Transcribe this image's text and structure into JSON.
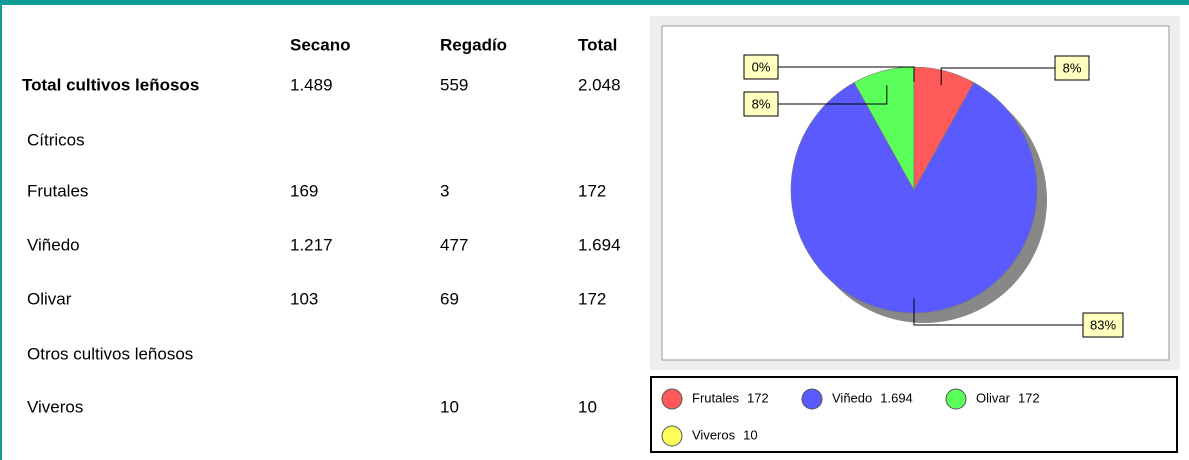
{
  "table": {
    "header": [
      "Secano",
      "Regadío",
      "Total"
    ],
    "rows": [
      {
        "label": "Total cultivos leñosos",
        "secano": "1.489",
        "regadio": "559",
        "total": "2.048"
      },
      {
        "label": "Cítricos"
      },
      {
        "label": "Frutales",
        "secano": "169",
        "regadio": "3",
        "total": "172"
      },
      {
        "label": "Viñedo",
        "secano": "1.217",
        "regadio": "477",
        "total": "1.694"
      },
      {
        "label": "Olivar",
        "secano": "103",
        "regadio": "69",
        "total": "172"
      },
      {
        "label": "Otros cultivos leñosos"
      },
      {
        "label": "Viveros",
        "regadio": "10",
        "total": "10"
      }
    ]
  },
  "chart_data": {
    "type": "pie",
    "categories": [
      "Frutales",
      "Viñedo",
      "Olivar",
      "Viveros"
    ],
    "values": [
      8,
      83,
      8,
      0
    ],
    "value_labels": [
      "8%",
      "83%",
      "8%",
      "0%"
    ],
    "legend_values": [
      "172",
      "1.694",
      "172",
      "10"
    ],
    "colors": [
      "#ff5a5a",
      "#5a5aff",
      "#5aff5a",
      "#ffff5a"
    ]
  }
}
